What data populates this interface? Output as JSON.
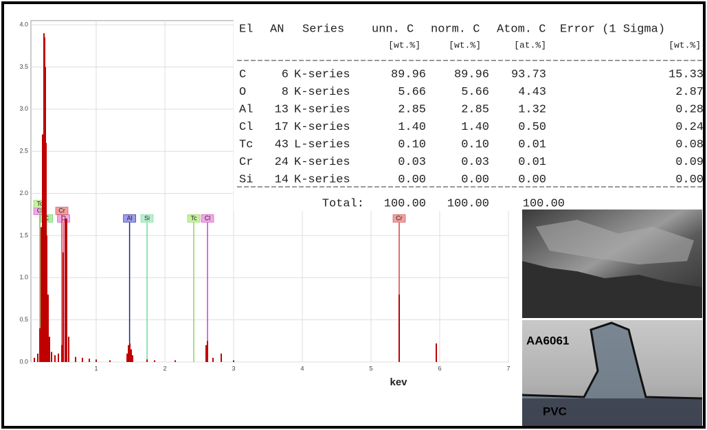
{
  "chart_data": {
    "type": "bar",
    "x_label": "kev",
    "color": "#c00000",
    "x": [
      0.1,
      0.15,
      0.18,
      0.2,
      0.22,
      0.24,
      0.25,
      0.26,
      0.27,
      0.28,
      0.3,
      0.32,
      0.35,
      0.4,
      0.45,
      0.5,
      0.52,
      0.55,
      0.57,
      0.6,
      0.7,
      0.8,
      0.9,
      1.0,
      1.2,
      1.45,
      1.47,
      1.49,
      1.51,
      1.53,
      1.74,
      1.85,
      2.15,
      2.6,
      2.62,
      2.7,
      2.82,
      3.0,
      5.41,
      5.95
    ],
    "values": [
      0.05,
      0.1,
      0.4,
      1.6,
      2.7,
      3.9,
      3.85,
      3.5,
      2.6,
      1.5,
      0.8,
      0.3,
      0.12,
      0.08,
      0.1,
      0.2,
      1.3,
      1.7,
      1.7,
      0.3,
      0.06,
      0.05,
      0.04,
      0.03,
      0.02,
      0.1,
      0.2,
      0.22,
      0.15,
      0.08,
      0.03,
      0.02,
      0.02,
      0.2,
      0.25,
      0.05,
      0.1,
      0.02,
      0.8,
      0.22
    ],
    "xlim": [
      0.05,
      7
    ],
    "ylim": [
      0,
      4.05
    ],
    "xticks": [
      1,
      2,
      3,
      4,
      5,
      6,
      7
    ],
    "yticks": [
      {
        "value": 0,
        "label": "0.0"
      },
      0.5,
      {
        "value": 1,
        "label": "1.0"
      },
      1.5,
      {
        "value": 2,
        "label": "2.0"
      },
      2.5,
      {
        "value": 3,
        "label": "3.0"
      },
      3.5,
      {
        "value": 4,
        "label": "4.0"
      }
    ],
    "grid": true,
    "markers": [
      {
        "label": "C",
        "x": 0.277,
        "color": "#5fd35f",
        "bg": "#a8f0a8"
      },
      {
        "label": "O",
        "x": 0.525,
        "color": "#d040c0",
        "bg": "#f0a8e8"
      },
      {
        "label": "Al",
        "x": 1.486,
        "color": "#20208a",
        "bg": "#9c9cf0"
      },
      {
        "label": "Si",
        "x": 1.74,
        "color": "#70d8a0",
        "bg": "#b8f0d0"
      },
      {
        "label": "Tc",
        "x": 2.42,
        "color": "#8ed060",
        "bg": "#c8f0a0"
      },
      {
        "label": "Cl",
        "x": 2.62,
        "color": "#d040c0",
        "bg": "#f0a8e8"
      },
      {
        "label": "Cr",
        "x": 5.41,
        "color": "#d04040",
        "bg": "#f0a0a0"
      },
      {
        "label": "Cl",
        "x": 0.18,
        "color": "#d040c0",
        "bg": "#f0a8e8"
      },
      {
        "label": "Cr",
        "x": 0.5,
        "color": "#d04040",
        "bg": "#f0a0a0"
      },
      {
        "label": "Tc",
        "x": 0.18,
        "color": "#8ed060",
        "bg": "#c8f0a0"
      }
    ]
  },
  "table": {
    "headers": [
      "El",
      "AN",
      "Series",
      "unn. C",
      "norm. C",
      "Atom. C",
      "Error (1 Sigma)"
    ],
    "units": [
      "[wt.%]",
      "[wt.%]",
      "[at.%]",
      "[wt.%]"
    ],
    "rows": [
      [
        "C",
        "6",
        "K-series",
        "89.96",
        "89.96",
        "93.73",
        "15.33"
      ],
      [
        "O",
        "8",
        "K-series",
        "5.66",
        "5.66",
        "4.43",
        "2.87"
      ],
      [
        "Al",
        "13",
        "K-series",
        "2.85",
        "2.85",
        "1.32",
        "0.28"
      ],
      [
        "Cl",
        "17",
        "K-series",
        "1.40",
        "1.40",
        "0.50",
        "0.24"
      ],
      [
        "Tc",
        "43",
        "L-series",
        "0.10",
        "0.10",
        "0.01",
        "0.08"
      ],
      [
        "Cr",
        "24",
        "K-series",
        "0.03",
        "0.03",
        "0.01",
        "0.09"
      ],
      [
        "Si",
        "14",
        "K-series",
        "0.00",
        "0.00",
        "0.00",
        "0.00"
      ]
    ],
    "total": {
      "label": "Total:",
      "values": [
        "100.00",
        "100.00",
        "100.00"
      ]
    }
  },
  "images": {
    "top_label": "AA6061",
    "bottom_label": "PVC"
  }
}
